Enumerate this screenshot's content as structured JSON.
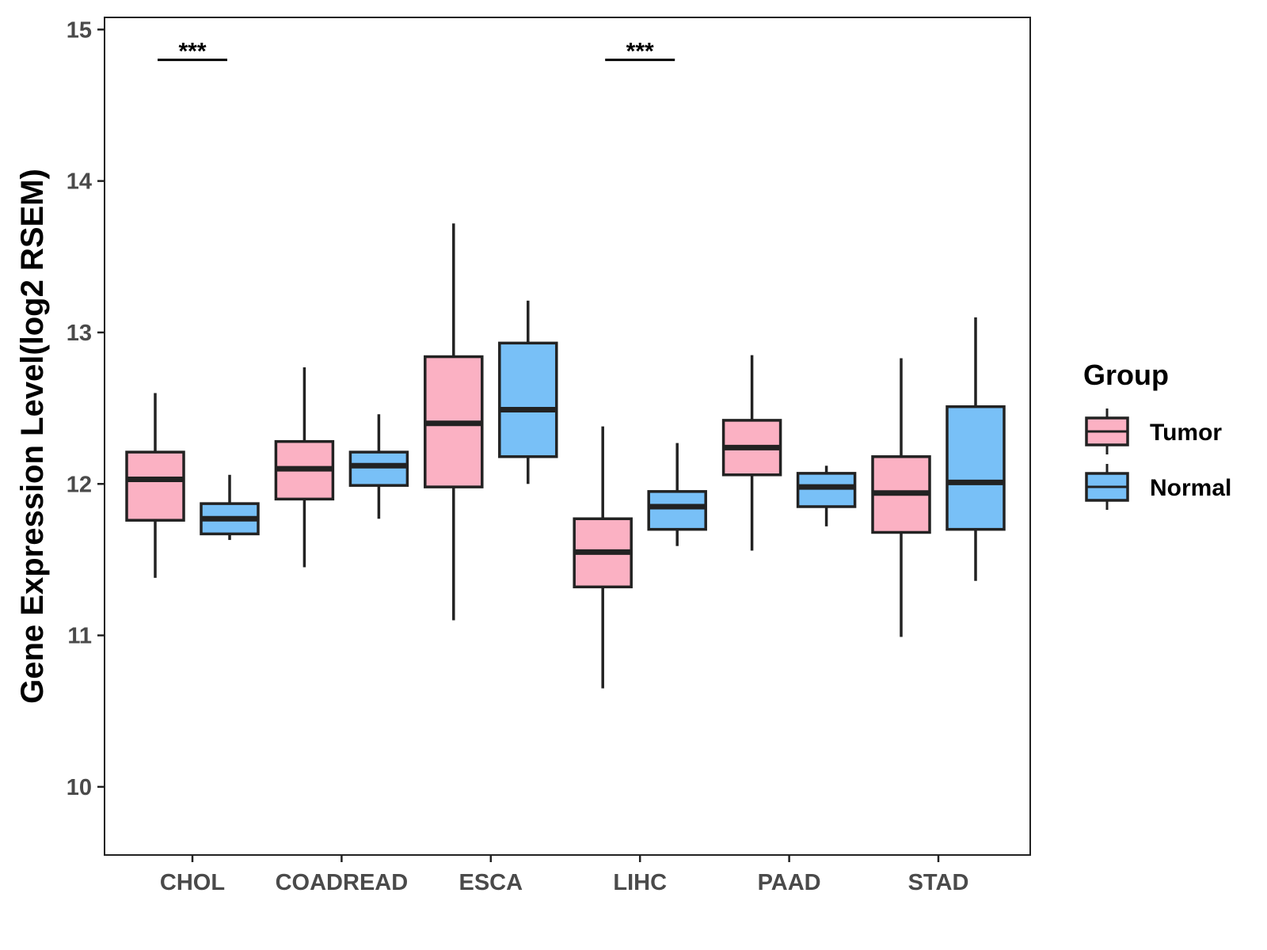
{
  "chart_data": {
    "type": "boxplot",
    "title": "",
    "xlabel": "",
    "ylabel": "Gene Expression Level(log2 RSEM)",
    "ylim": [
      9.55,
      15.08
    ],
    "yticks": [
      10,
      11,
      12,
      13,
      14,
      15
    ],
    "grid": false,
    "categories": [
      "CHOL",
      "COADREAD",
      "ESCA",
      "LIHC",
      "PAAD",
      "STAD"
    ],
    "legend": {
      "title": "Group",
      "position": "right",
      "entries": [
        {
          "name": "Tumor",
          "color": "#fbb1c3"
        },
        {
          "name": "Normal",
          "color": "#78c0f7"
        }
      ]
    },
    "series": [
      {
        "name": "Tumor",
        "color": "#fbb1c3",
        "boxes": [
          {
            "min": 11.38,
            "q1": 11.76,
            "median": 12.03,
            "q3": 12.21,
            "max": 12.6
          },
          {
            "min": 11.45,
            "q1": 11.9,
            "median": 12.1,
            "q3": 12.28,
            "max": 12.77
          },
          {
            "min": 11.1,
            "q1": 11.98,
            "median": 12.4,
            "q3": 12.84,
            "max": 13.72
          },
          {
            "min": 10.65,
            "q1": 11.32,
            "median": 11.55,
            "q3": 11.77,
            "max": 12.38
          },
          {
            "min": 11.56,
            "q1": 12.06,
            "median": 12.24,
            "q3": 12.42,
            "max": 12.85
          },
          {
            "min": 10.99,
            "q1": 11.68,
            "median": 11.94,
            "q3": 12.18,
            "max": 12.83
          }
        ]
      },
      {
        "name": "Normal",
        "color": "#78c0f7",
        "boxes": [
          {
            "min": 11.63,
            "q1": 11.67,
            "median": 11.77,
            "q3": 11.87,
            "max": 12.06
          },
          {
            "min": 11.77,
            "q1": 11.99,
            "median": 12.12,
            "q3": 12.21,
            "max": 12.46
          },
          {
            "min": 12.0,
            "q1": 12.18,
            "median": 12.49,
            "q3": 12.93,
            "max": 13.21
          },
          {
            "min": 11.59,
            "q1": 11.7,
            "median": 11.85,
            "q3": 11.95,
            "max": 12.27
          },
          {
            "min": 11.72,
            "q1": 11.85,
            "median": 11.98,
            "q3": 12.07,
            "max": 12.12
          },
          {
            "min": 11.36,
            "q1": 11.7,
            "median": 12.01,
            "q3": 12.51,
            "max": 13.1
          }
        ]
      }
    ],
    "annotations": [
      {
        "category": "CHOL",
        "text": "***",
        "y": 14.8
      },
      {
        "category": "LIHC",
        "text": "***",
        "y": 14.8
      }
    ]
  }
}
